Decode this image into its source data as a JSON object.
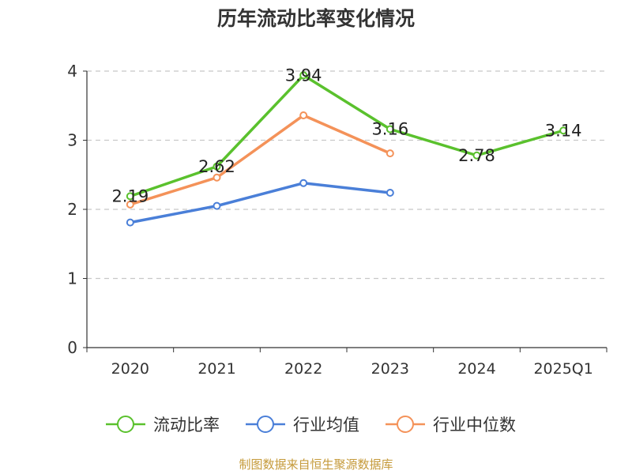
{
  "title": "历年流动比率变化情况",
  "source": "制图数据来自恒生聚源数据库",
  "chart_data": {
    "type": "line",
    "title": "历年流动比率变化情况",
    "xlabel": "",
    "ylabel": "",
    "categories": [
      "2020",
      "2021",
      "2022",
      "2023",
      "2024",
      "2025Q1"
    ],
    "ylim": [
      0,
      4
    ],
    "yticks": [
      0,
      1,
      2,
      3,
      4
    ],
    "grid": true,
    "legend_position": "bottom",
    "series": [
      {
        "name": "流动比率",
        "color": "#5ac12d",
        "values": [
          2.19,
          2.62,
          3.94,
          3.16,
          2.78,
          3.14
        ],
        "labels": [
          "2.19",
          "2.62",
          "3.94",
          "3.16",
          "2.78",
          "3.14"
        ]
      },
      {
        "name": "行业均值",
        "color": "#4a7fd8",
        "values": [
          1.81,
          2.05,
          2.38,
          2.24,
          null,
          null
        ]
      },
      {
        "name": "行业中位数",
        "color": "#f49259",
        "values": [
          2.07,
          2.46,
          3.36,
          2.81,
          null,
          null
        ]
      }
    ]
  }
}
